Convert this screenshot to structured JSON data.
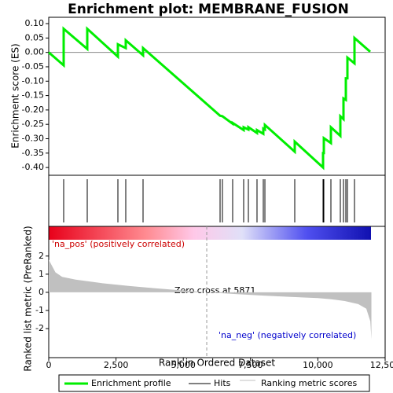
{
  "chart_data": [
    {
      "type": "line",
      "title": "Enrichment plot: MEMBRANE_FUSION",
      "ylabel": "Enrichment score (ES)",
      "xlim": [
        0,
        12500
      ],
      "ylim": [
        -0.427,
        0.122
      ],
      "yticks": [
        {
          "value": 0.1,
          "label": "0.10"
        },
        {
          "value": 0.05,
          "label": "0.05"
        },
        {
          "value": 0,
          "label": "0.00"
        },
        {
          "value": -0.05,
          "label": "-0.05"
        },
        {
          "value": -0.1,
          "label": "-0.10"
        },
        {
          "value": -0.15,
          "label": "-0.15"
        },
        {
          "value": -0.2,
          "label": "-0.20"
        },
        {
          "value": -0.25,
          "label": "-0.25"
        },
        {
          "value": -0.3,
          "label": "-0.30"
        },
        {
          "value": -0.35,
          "label": "-0.35"
        },
        {
          "value": -0.4,
          "label": "-0.40"
        }
      ],
      "series": [
        {
          "name": "Enrichment profile",
          "color": "#00ee00",
          "x": [
            0,
            555,
            555,
            1431,
            1431,
            2570,
            2570,
            2862,
            2862,
            3505,
            3505,
            6367,
            6454,
            6834,
            6834,
            7243,
            7243,
            7418,
            7418,
            7739,
            7739,
            7973,
            7973,
            8032,
            8032,
            9141,
            9141,
            10193,
            10193,
            10222,
            10222,
            10485,
            10485,
            10835,
            10835,
            10952,
            10952,
            11040,
            11040,
            11098,
            11098,
            11361,
            11361,
            11945
          ],
          "values": [
            0,
            -0.045,
            0.082,
            0.012,
            0.082,
            -0.015,
            0.028,
            0.015,
            0.042,
            -0.01,
            0.015,
            -0.22,
            -0.222,
            -0.248,
            -0.245,
            -0.27,
            -0.26,
            -0.268,
            -0.26,
            -0.28,
            -0.27,
            -0.283,
            -0.265,
            -0.268,
            -0.252,
            -0.345,
            -0.31,
            -0.4,
            -0.35,
            -0.35,
            -0.298,
            -0.315,
            -0.26,
            -0.29,
            -0.222,
            -0.232,
            -0.16,
            -0.165,
            -0.09,
            -0.09,
            -0.018,
            -0.038,
            0.05,
            0.002
          ]
        }
      ]
    },
    {
      "type": "hits",
      "xlim": [
        0,
        12500
      ],
      "series": [
        {
          "name": "Hits",
          "color": "#000000",
          "x": [
            555,
            1431,
            2570,
            2862,
            3505,
            6367,
            6454,
            6834,
            7243,
            7418,
            7739,
            7973,
            8032,
            9141,
            10193,
            10222,
            10485,
            10835,
            10952,
            11040,
            11098,
            11361
          ]
        }
      ]
    },
    {
      "type": "area",
      "ylabel": "Ranked list metric (PreRanked)",
      "xlabel": "Rank in Ordered Dataset",
      "xlim": [
        0,
        12500
      ],
      "ylim": [
        -3.6,
        2.9
      ],
      "xticks": [
        0,
        {
          "value": 2500,
          "label": "2,500"
        },
        {
          "value": 5000,
          "label": "5,000"
        },
        {
          "value": 7500,
          "label": "7,500"
        },
        {
          "value": 10000,
          "label": "10,000"
        },
        {
          "value": 12500,
          "label": "12,500"
        }
      ],
      "yticks": [
        2,
        1,
        0,
        -1,
        -2
      ],
      "series": [
        {
          "name": "Ranking metric scores",
          "color": "#c0c0c0",
          "x": [
            0,
            250,
            500,
            1000,
            2000,
            3000,
            4000,
            5000,
            5871,
            7000,
            8000,
            9000,
            10000,
            10500,
            11000,
            11500,
            11800,
            11950,
            11990
          ],
          "values": [
            1.8,
            1.1,
            0.85,
            0.7,
            0.5,
            0.35,
            0.22,
            0.1,
            0,
            -0.1,
            -0.18,
            -0.25,
            -0.32,
            -0.38,
            -0.48,
            -0.65,
            -0.9,
            -1.6,
            -2.6
          ]
        }
      ],
      "zero_cross": 5871,
      "annotations": [
        "'na_pos' (positively correlated)",
        "'na_neg' (negatively correlated)",
        "Zero cross at 5871"
      ]
    }
  ]
}
